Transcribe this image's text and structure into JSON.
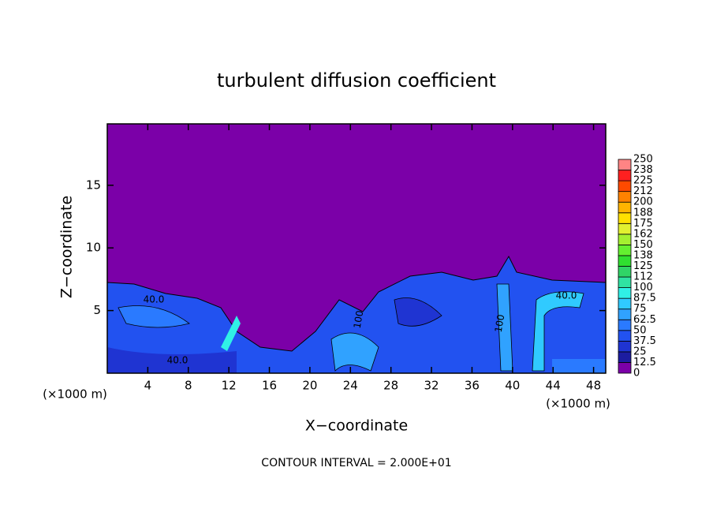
{
  "chart_data": {
    "type": "contour",
    "title": "turbulent diffusion coefficient",
    "x_label": "X−coordinate",
    "y_label": "Z−coordinate",
    "x_unit": "(×1000 m)",
    "y_unit": "(×1000 m)",
    "xlim": [
      0,
      49.2
    ],
    "ylim": [
      0,
      19.9
    ],
    "xticks": [
      4,
      8,
      12,
      16,
      20,
      24,
      28,
      32,
      36,
      40,
      44,
      48
    ],
    "yticks": [
      5,
      10,
      15
    ],
    "footer": "CONTOUR INTERVAL = 2.000E+01",
    "contour_labels": [
      "40.0",
      "40.0",
      "100",
      "100",
      "40.0"
    ],
    "colorbar": {
      "ticks": [
        0,
        12.5,
        25,
        37.5,
        50,
        62.5,
        75,
        87.5,
        100,
        {
          "value": 112.5,
          "label": "112"
        },
        125,
        {
          "value": 137.5,
          "label": "138"
        },
        150,
        {
          "value": 162.5,
          "label": "162"
        },
        175,
        {
          "value": 187.5,
          "label": "188"
        },
        200,
        {
          "value": 212.5,
          "label": "212"
        },
        225,
        {
          "value": 237.5,
          "label": "238"
        },
        250
      ],
      "colors": [
        "#7b00a8",
        "#1c1ca0",
        "#1f34d2",
        "#2252f0",
        "#2a7aff",
        "#30a2ff",
        "#30caff",
        "#30f0e6",
        "#30e2a2",
        "#30d466",
        "#30e030",
        "#64f030",
        "#a4f030",
        "#e2f030",
        "#ffe000",
        "#ffb400",
        "#ff8200",
        "#ff4a00",
        "#ff2020",
        "#ff8484"
      ]
    }
  }
}
